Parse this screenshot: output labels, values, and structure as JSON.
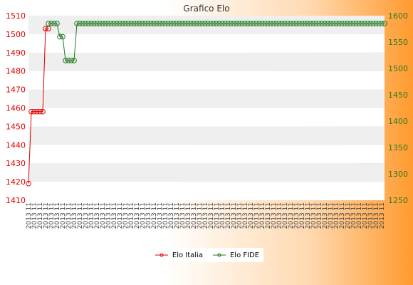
{
  "title": "Grafico Elo",
  "legend": {
    "italia": "Elo Italia",
    "fide": "Elo FIDE"
  },
  "colors": {
    "italia": "#e00000",
    "fide": "#1f7a1f",
    "band": "#efefef"
  },
  "chart_data": {
    "type": "line",
    "title": "Grafico Elo",
    "x_label_template": "2013 11",
    "x_count": 126,
    "y_left": {
      "min": 1410,
      "max": 1510,
      "ticks": [
        1410,
        1420,
        1430,
        1440,
        1450,
        1460,
        1470,
        1480,
        1490,
        1500,
        1510
      ]
    },
    "y_right": {
      "min": 1250,
      "max": 1600,
      "ticks": [
        1250,
        1300,
        1350,
        1400,
        1450,
        1500,
        1550,
        1600
      ]
    },
    "legend_position": "bottom",
    "series": [
      {
        "name": "Elo Italia",
        "axis": "left",
        "start_index": 0,
        "values": [
          1419,
          1458,
          1458,
          1458,
          1458,
          1458,
          1503,
          1503
        ]
      },
      {
        "name": "Elo FIDE",
        "axis": "right",
        "start_index": 7,
        "values": [
          1585,
          1585,
          1585,
          1585,
          1560,
          1560,
          1515,
          1515,
          1515,
          1515,
          1585,
          1585,
          1585,
          1585,
          1585,
          1585,
          1585,
          1585,
          1585,
          1585,
          1585,
          1585,
          1585,
          1585,
          1585,
          1585,
          1585,
          1585,
          1585,
          1585,
          1585,
          1585,
          1585,
          1585,
          1585,
          1585,
          1585,
          1585,
          1585,
          1585,
          1585,
          1585,
          1585,
          1585,
          1585,
          1585,
          1585,
          1585,
          1585,
          1585,
          1585,
          1585,
          1585,
          1585,
          1585,
          1585,
          1585,
          1585,
          1585,
          1585,
          1585,
          1585,
          1585,
          1585,
          1585,
          1585,
          1585,
          1585,
          1585,
          1585,
          1585,
          1585,
          1585,
          1585,
          1585,
          1585,
          1585,
          1585,
          1585,
          1585,
          1585,
          1585,
          1585,
          1585,
          1585,
          1585,
          1585,
          1585,
          1585,
          1585,
          1585,
          1585,
          1585,
          1585,
          1585,
          1585,
          1585,
          1585,
          1585,
          1585,
          1585,
          1585,
          1585,
          1585,
          1585,
          1585,
          1585,
          1585,
          1585,
          1585,
          1585,
          1585,
          1585,
          1585,
          1585,
          1585,
          1585,
          1585,
          1585
        ]
      }
    ]
  }
}
